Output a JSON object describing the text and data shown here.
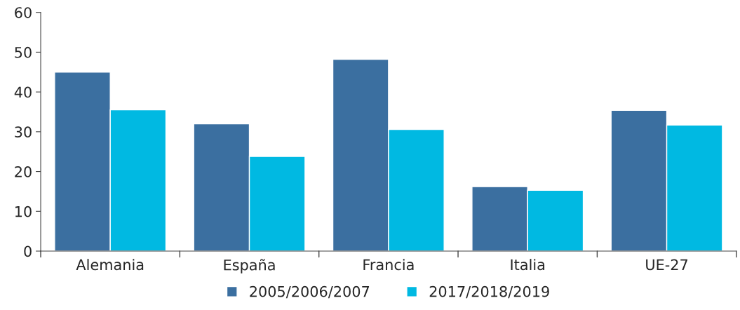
{
  "chart_data": {
    "type": "bar",
    "categories": [
      "Alemania",
      "España",
      "Francia",
      "Italia",
      "UE-27"
    ],
    "series": [
      {
        "name": "2005/2006/2007",
        "color": "#3b6fa0",
        "values": [
          45,
          32,
          48.2,
          16.2,
          35.4
        ]
      },
      {
        "name": "2017/2018/2019",
        "color": "#00b9e2",
        "values": [
          35.5,
          23.8,
          30.6,
          15.3,
          31.7
        ]
      }
    ],
    "ylim": [
      0,
      60
    ],
    "yticks": [
      0,
      10,
      20,
      30,
      40,
      50,
      60
    ],
    "grid": false,
    "legend": "bottom"
  }
}
